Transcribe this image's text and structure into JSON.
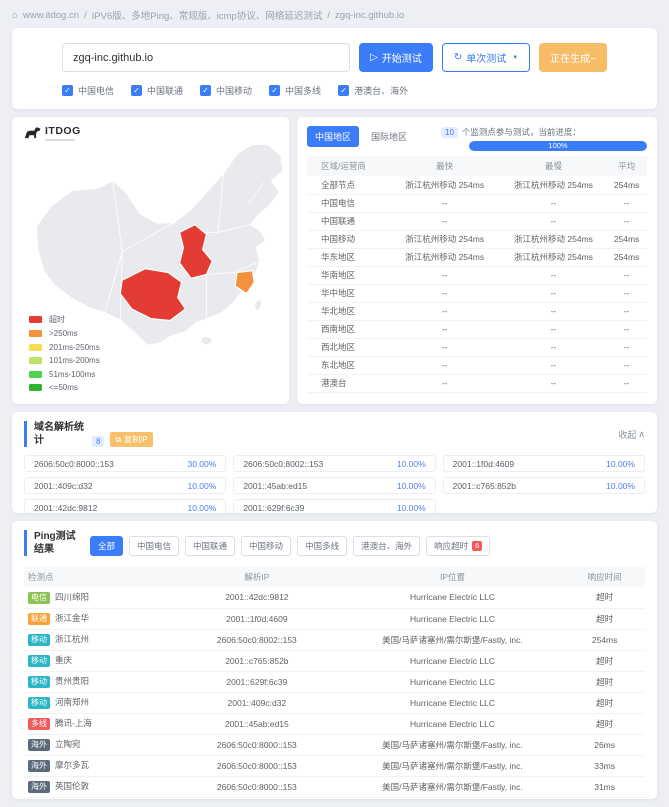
{
  "theme": {
    "primary": "#3b7cf8",
    "warning": "#f6bc66",
    "danger": "#f56c6c",
    "link": "#4f7df2"
  },
  "breadcrumb": {
    "site": "www.itdog.cn",
    "separator": "/",
    "keywords": "IPV6版、多地Ping、常规版、icmp协议、网络延迟测试",
    "target": "zgq-inc.github.io"
  },
  "search": {
    "value": "zgq-inc.github.io",
    "start_button": "开始测试",
    "single_button": "单次测试",
    "generating_button": "正在生成~",
    "checkboxes": [
      "中国电信",
      "中国联通",
      "中国移动",
      "中国多线",
      "港澳台、海外"
    ]
  },
  "map": {
    "logo": "ITDOG",
    "legend": [
      {
        "label": "超时",
        "color": "#e23c35"
      },
      {
        "label": ">250ms",
        "color": "#f2923c"
      },
      {
        "label": "201ms-250ms",
        "color": "#f5dd4f"
      },
      {
        "label": "101ms-200ms",
        "color": "#bde463"
      },
      {
        "label": "51ms-100ms",
        "color": "#53d153"
      },
      {
        "label": "<=50ms",
        "color": "#2eb52e"
      }
    ]
  },
  "region_panel": {
    "tabs": [
      {
        "label": "中国地区",
        "active": true
      },
      {
        "label": "国际地区",
        "active": false
      }
    ],
    "node_count": "10",
    "progress_label": "个监测点参与测试，当前进度：",
    "progress_value": "100%",
    "headers": [
      "区域/运营商",
      "最快",
      "最慢",
      "平均"
    ],
    "rows": [
      [
        "全部节点",
        "浙江杭州移动 254ms",
        "浙江杭州移动 254ms",
        "254ms"
      ],
      [
        "中国电信",
        "--",
        "--",
        "--"
      ],
      [
        "中国联通",
        "--",
        "--",
        "--"
      ],
      [
        "中国移动",
        "浙江杭州移动 254ms",
        "浙江杭州移动 254ms",
        "254ms"
      ],
      [
        "华东地区",
        "浙江杭州移动 254ms",
        "浙江杭州移动 254ms",
        "254ms"
      ],
      [
        "华南地区",
        "--",
        "--",
        "--"
      ],
      [
        "华中地区",
        "--",
        "--",
        "--"
      ],
      [
        "华北地区",
        "--",
        "--",
        "--"
      ],
      [
        "西南地区",
        "--",
        "--",
        "--"
      ],
      [
        "西北地区",
        "--",
        "--",
        "--"
      ],
      [
        "东北地区",
        "--",
        "--",
        "--"
      ],
      [
        "港澳台",
        "--",
        "--",
        "--"
      ]
    ]
  },
  "dns_stats": {
    "title": "域名解析统计",
    "badge": "8",
    "copy_button": "复制IP",
    "collapse_label": "收起",
    "items": [
      {
        "ip": "2606:50c0:8000::153",
        "pct": "30.00%"
      },
      {
        "ip": "2606:50c0:8002::153",
        "pct": "10.00%"
      },
      {
        "ip": "2001::1f0d:4609",
        "pct": "10.00%"
      },
      {
        "ip": "2001::409c:d32",
        "pct": "10.00%"
      },
      {
        "ip": "2001::45ab:ed15",
        "pct": "10.00%"
      },
      {
        "ip": "2001::c765:852b",
        "pct": "10.00%"
      },
      {
        "ip": "2001::42dc:9812",
        "pct": "10.00%"
      },
      {
        "ip": "2001::629f:6c39",
        "pct": "10.00%"
      }
    ]
  },
  "ping_results": {
    "title": "Ping测试结果",
    "filters": [
      {
        "label": "全部",
        "active": true
      },
      {
        "label": "中国电信"
      },
      {
        "label": "中国联通"
      },
      {
        "label": "中国移动"
      },
      {
        "label": "中国多线"
      },
      {
        "label": "港澳台、海外"
      },
      {
        "label": "响应超时",
        "badge": "6"
      }
    ],
    "headers": [
      "检测点",
      "解析IP",
      "IP位置",
      "响应时间"
    ],
    "isp_colors": {
      "电信": "#8cc153",
      "联通": "#f5a33b",
      "移动": "#2ab6c4",
      "多线": "#f05a5a",
      "海外": "#5b6b7b"
    },
    "rows": [
      {
        "isp": "电信",
        "node": "四川绵阳",
        "ip": "2001::42dc:9812",
        "location": "Hurricane Electric LLC",
        "time": "超时",
        "timeout": true
      },
      {
        "isp": "联通",
        "node": "浙江金华",
        "ip": "2001::1f0d:4609",
        "location": "Hurricane Electric LLC",
        "time": "超时",
        "timeout": true
      },
      {
        "isp": "移动",
        "node": "浙江杭州",
        "ip": "2606:50c0:8002::153",
        "location": "美国/马萨诸塞州/需尔斯堡/Fastly, inc.",
        "time": "254ms",
        "timeout": false
      },
      {
        "isp": "移动",
        "node": "重庆",
        "ip": "2001::c765:852b",
        "location": "Hurricane Electric LLC",
        "time": "超时",
        "timeout": true
      },
      {
        "isp": "移动",
        "node": "贵州贵阳",
        "ip": "2001::629f:6c39",
        "location": "Hurricane Electric LLC",
        "time": "超时",
        "timeout": true
      },
      {
        "isp": "移动",
        "node": "河南郑州",
        "ip": "2001::409c:d32",
        "location": "Hurricane Electric LLC",
        "time": "超时",
        "timeout": true
      },
      {
        "isp": "多线",
        "node": "腾讯-上海",
        "ip": "2001::45ab:ed15",
        "location": "Hurricane Electric LLC",
        "time": "超时",
        "timeout": true
      },
      {
        "isp": "海外",
        "node": "立陶宛",
        "ip": "2606:50c0:8000::153",
        "location": "美国/马萨诸塞州/需尔斯堡/Fastly, inc.",
        "time": "26ms",
        "timeout": false
      },
      {
        "isp": "海外",
        "node": "摩尔多瓦",
        "ip": "2606:50c0:8000::153",
        "location": "美国/马萨诸塞州/需尔斯堡/Fastly, inc.",
        "time": "33ms",
        "timeout": false
      },
      {
        "isp": "海外",
        "node": "英国伦敦",
        "ip": "2606:50c0:8000::153",
        "location": "美国/马萨诸塞州/需尔斯堡/Fastly, inc.",
        "time": "31ms",
        "timeout": false
      }
    ]
  }
}
